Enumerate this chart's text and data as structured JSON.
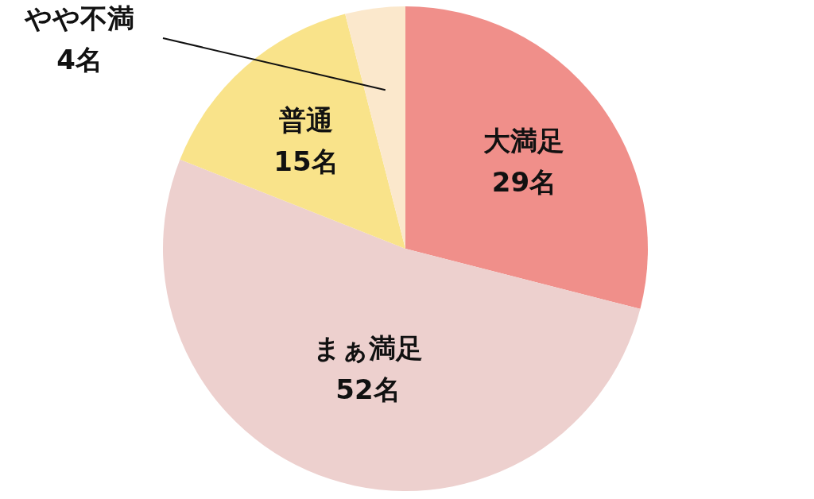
{
  "chart_data": {
    "type": "pie",
    "categories": [
      "大満足",
      "まぁ満足",
      "普通",
      "やや不満"
    ],
    "values": [
      29,
      52,
      15,
      4
    ],
    "colors": [
      "#f08f8a",
      "#edd0ce",
      "#f9e38a",
      "#fbe8cc"
    ],
    "value_labels": [
      "29名",
      "52名",
      "15名",
      "4名"
    ]
  }
}
